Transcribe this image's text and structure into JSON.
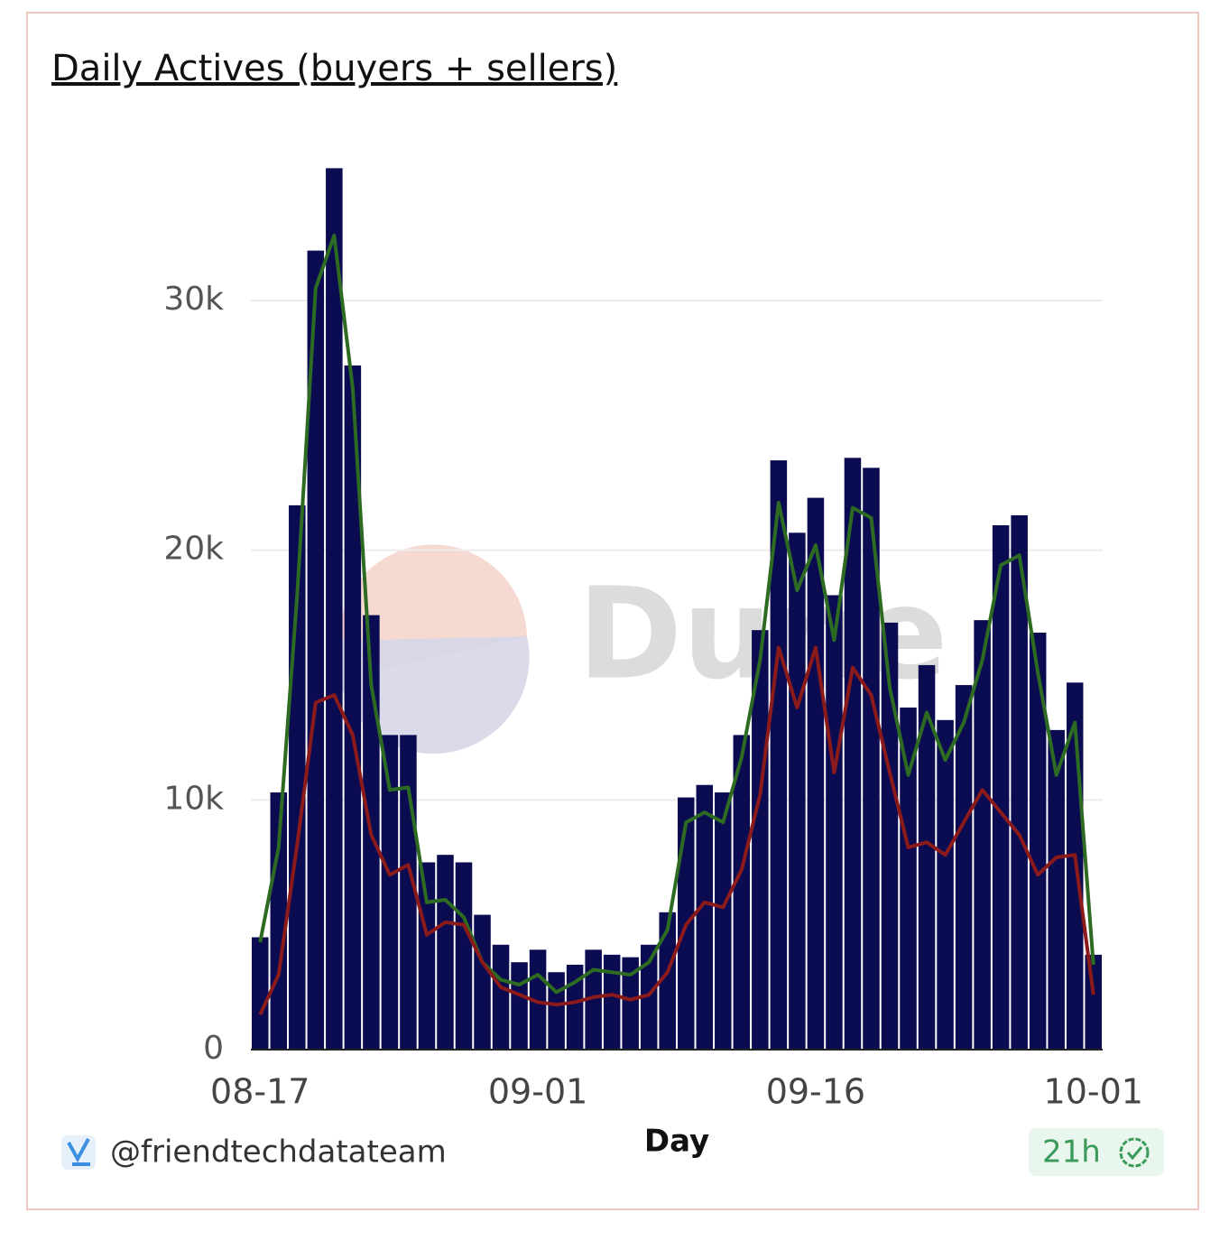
{
  "chart_data": {
    "type": "bar",
    "title": "Daily Actives (buyers + sellers)",
    "x_label": "Day",
    "watermark": "Dune",
    "footer": {
      "author": "@friendtechdatateam",
      "badge": "21h"
    },
    "categories": [
      "08-17",
      null,
      null,
      null,
      null,
      null,
      null,
      null,
      null,
      null,
      null,
      null,
      null,
      null,
      null,
      "09-01",
      null,
      null,
      null,
      null,
      null,
      null,
      null,
      null,
      null,
      null,
      null,
      null,
      null,
      null,
      "09-16",
      null,
      null,
      null,
      null,
      null,
      null,
      null,
      null,
      null,
      null,
      null,
      null,
      null,
      null,
      "10-01"
    ],
    "series": [
      {
        "type": "bar",
        "color": "#0b0b52",
        "values": [
          4500,
          10300,
          21800,
          32000,
          35300,
          27400,
          17400,
          12600,
          12600,
          7500,
          7800,
          7500,
          5400,
          4200,
          3500,
          4000,
          3100,
          3400,
          4000,
          3800,
          3700,
          4200,
          5500,
          10100,
          10600,
          10300,
          12600,
          16800,
          23600,
          20700,
          22100,
          18200,
          23700,
          23300,
          17100,
          13700,
          15400,
          13200,
          14600,
          17200,
          21000,
          21400,
          16700,
          12800,
          14700,
          3800
        ]
      },
      {
        "type": "line",
        "color": "#2e6b22",
        "values": [
          4300,
          8100,
          18200,
          30500,
          32600,
          26500,
          14600,
          10400,
          10500,
          5900,
          6000,
          5300,
          3500,
          2800,
          2600,
          3000,
          2300,
          2700,
          3200,
          3100,
          3000,
          3500,
          4800,
          9100,
          9500,
          9100,
          11700,
          15600,
          21900,
          18400,
          20200,
          16400,
          21700,
          21300,
          14500,
          11000,
          13500,
          11600,
          13100,
          15600,
          19400,
          19800,
          15100,
          11000,
          13100,
          3400
        ]
      },
      {
        "type": "line",
        "color": "#8b1a1a",
        "values": [
          1400,
          3000,
          8200,
          13900,
          14200,
          12600,
          8600,
          7000,
          7400,
          4600,
          5100,
          5000,
          3500,
          2500,
          2200,
          1900,
          1800,
          1900,
          2100,
          2200,
          2000,
          2200,
          3100,
          5000,
          5900,
          5700,
          7200,
          10200,
          16100,
          13700,
          16100,
          11100,
          15300,
          14200,
          11100,
          8100,
          8300,
          7800,
          9100,
          10400,
          9500,
          8600,
          7000,
          7700,
          7800,
          2200
        ]
      }
    ],
    "ylim": [
      0,
      36000
    ],
    "yticks": [
      0,
      {
        "value": 10000,
        "label": "10k"
      },
      {
        "value": 20000,
        "label": "20k"
      },
      {
        "value": 30000,
        "label": "30k"
      }
    ],
    "grid": true
  }
}
